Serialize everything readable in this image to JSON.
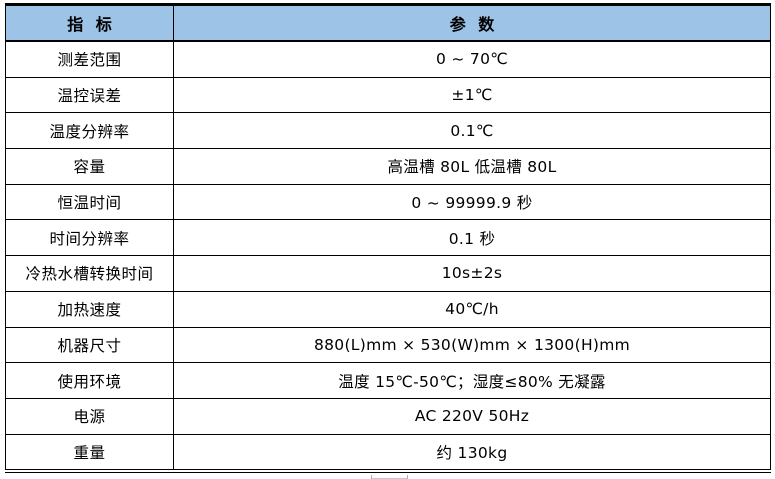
{
  "colors": {
    "header_bg": "#9DC3E6",
    "border": "#000000",
    "cropped_fragment_gray": "#B0B0B0"
  },
  "table": {
    "headers": [
      "指 标",
      "参 数"
    ],
    "rows": [
      {
        "label": "测差范围",
        "value": "0 ~ 70℃"
      },
      {
        "label": "温控误差",
        "value": "±1℃"
      },
      {
        "label": "温度分辨率",
        "value": "0.1℃"
      },
      {
        "label": "容量",
        "value": "高温槽 80L 低温槽 80L"
      },
      {
        "label": "恒温时间",
        "value": "0 ~ 99999.9 秒"
      },
      {
        "label": "时间分辨率",
        "value": "0.1 秒"
      },
      {
        "label": "冷热水槽转换时间",
        "value": "10s±2s"
      },
      {
        "label": "加热速度",
        "value": "40℃/h"
      },
      {
        "label": "机器尺寸",
        "value": "880(L)mm × 530(W)mm × 1300(H)mm"
      },
      {
        "label": "使用环境",
        "value": "温度 15℃-50℃；湿度≤80% 无凝露"
      },
      {
        "label": "电源",
        "value": "AC 220V 50Hz"
      },
      {
        "label": "重量",
        "value": "约 130kg"
      }
    ]
  }
}
